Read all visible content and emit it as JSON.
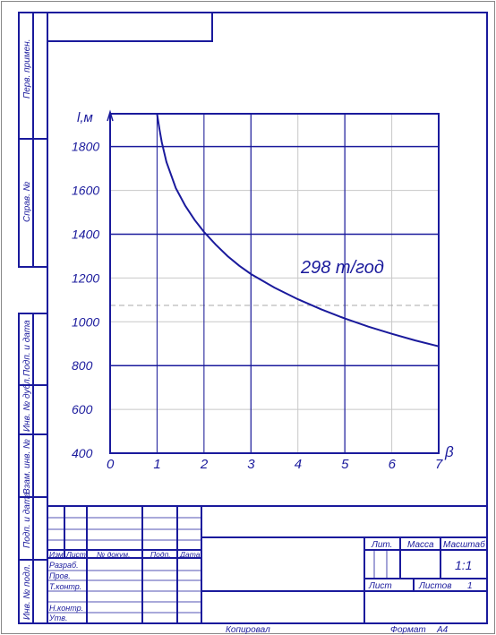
{
  "chart_data": {
    "type": "line",
    "title": "",
    "xlabel": "β",
    "ylabel": "l,м",
    "xlim": [
      0,
      7
    ],
    "ylim": [
      400,
      1950
    ],
    "x_ticks": [
      "0",
      "1",
      "2",
      "3",
      "4",
      "5",
      "6",
      "7"
    ],
    "y_ticks": [
      "400",
      "600",
      "800",
      "1000",
      "1200",
      "1400",
      "1600",
      "1800"
    ],
    "grid": true,
    "series": [
      {
        "name": "298 т/год",
        "x": [
          1.0,
          1.05,
          1.1,
          1.2,
          1.4,
          1.6,
          1.8,
          2.0,
          2.25,
          2.5,
          2.75,
          3.0,
          3.5,
          4.0,
          4.5,
          5.0,
          5.5,
          6.0,
          6.5,
          7.0
        ],
        "values": [
          1950,
          1880,
          1820,
          1730,
          1610,
          1530,
          1465,
          1410,
          1352,
          1300,
          1256,
          1218,
          1156,
          1103,
          1057,
          1015,
          978,
          945,
          915,
          888
        ]
      }
    ],
    "reference_line": {
      "y": 1075,
      "style": "dashed"
    },
    "annotation": "298 т/год",
    "colors": {
      "ink": "#1a1a9c",
      "grid": "#c8c8c8",
      "dashed": "#a8a8a8"
    }
  },
  "stamp": {
    "side_labels": [
      "Перв. примен.",
      "Справ. №",
      "Подп. и дата",
      "Инв. № дубл.",
      "Взам. инв. №",
      "Подп. и дата",
      "Инв. № подл."
    ],
    "columns": [
      "Изм",
      "Лист",
      "№ докум.",
      "Подп.",
      "Дата"
    ],
    "roles": [
      "Разраб.",
      "Пров.",
      "Т.контр.",
      "Н.контр.",
      "Утв."
    ],
    "lit_label": "Лит.",
    "mass_label": "Масса",
    "scale_label": "Масштаб",
    "scale_value": "1:1",
    "sheet_label": "Лист",
    "sheets_label": "Листов",
    "sheets_value": "1"
  },
  "footer": {
    "copied": "Копировал",
    "format_label": "Формат",
    "format_value": "A4"
  }
}
